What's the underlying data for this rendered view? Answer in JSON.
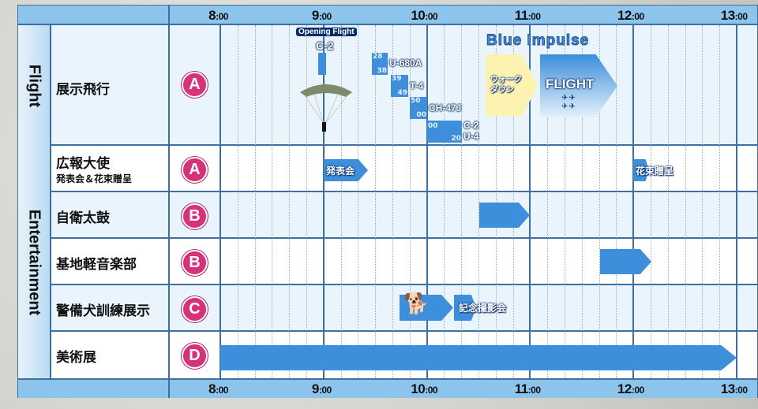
{
  "categories": {
    "flight": "Flight",
    "entertainment": "Entertainment"
  },
  "time_labels": [
    {
      "h": "8",
      "m": ":00"
    },
    {
      "h": "9",
      "m": ":00"
    },
    {
      "h": "10",
      "m": ":00"
    },
    {
      "h": "11",
      "m": ":00"
    },
    {
      "h": "12",
      "m": ":00"
    },
    {
      "h": "13",
      "m": ":00"
    }
  ],
  "rows": [
    {
      "label": "展示飛行",
      "badge": "A"
    },
    {
      "label": "広報大使",
      "sublabel": "発表会＆花束贈呈",
      "badge": "A"
    },
    {
      "label": "自衛太鼓",
      "badge": "B"
    },
    {
      "label": "基地軽音楽部",
      "badge": "B"
    },
    {
      "label": "警備犬訓練展示",
      "badge": "C"
    },
    {
      "label": "美術展",
      "badge": "D"
    }
  ],
  "flight": {
    "opening_label": "Opening Flight",
    "opening_plane": "C-2",
    "slots": [
      {
        "plane": "U-680A",
        "start": "28",
        "end": "38"
      },
      {
        "plane": "T-4",
        "start": "39",
        "end": "49"
      },
      {
        "plane": "CH-47J",
        "start": "50",
        "end": "00"
      },
      {
        "plane": "C-2",
        "plane2": "U-4",
        "start": "00",
        "end": "20"
      }
    ],
    "blue_impulse_title": "Blue Impulse",
    "walkdown": "ウォーク\nダウン",
    "flight_label": "FLIGHT"
  },
  "events": {
    "announcement": "発表会",
    "bouquet": "花束贈呈",
    "photo": "記念撮影会"
  },
  "colors": {
    "header": "#8cc4ec",
    "bar": "#3d8edb",
    "badge": "#d6327c",
    "grid": "#3f6f9f",
    "walkdown": "#fdf3b0"
  }
}
